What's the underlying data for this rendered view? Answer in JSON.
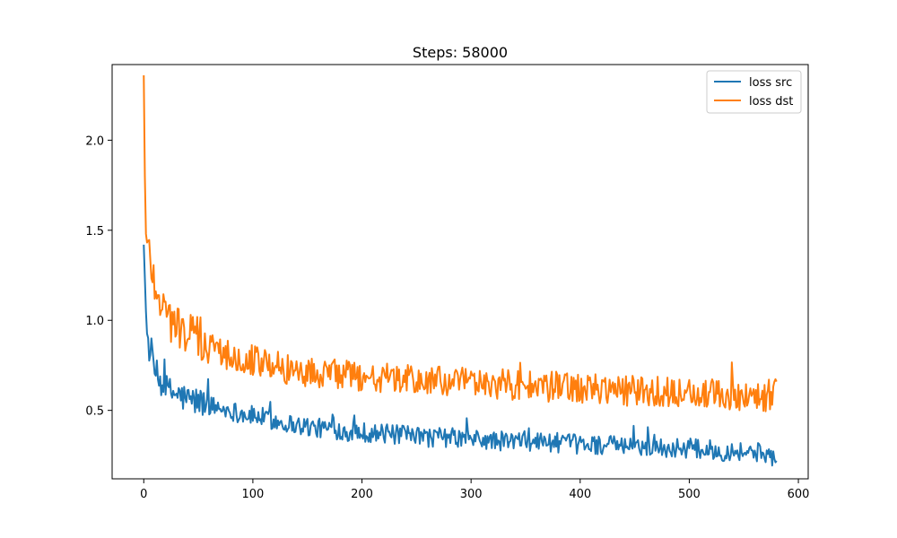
{
  "chart_data": {
    "type": "line",
    "title": "Steps: 58000",
    "xlabel": "",
    "ylabel": "",
    "xlim": [
      -29,
      609
    ],
    "ylim": [
      0.12,
      2.42
    ],
    "xticks": [
      0,
      100,
      200,
      300,
      400,
      500,
      600
    ],
    "yticks": [
      0.5,
      1.0,
      1.5,
      2.0
    ],
    "xtick_labels": [
      "0",
      "100",
      "200",
      "300",
      "400",
      "500",
      "600"
    ],
    "ytick_labels": [
      "0.5",
      "1.0",
      "1.5",
      "2.0"
    ],
    "grid": false,
    "legend_position": "top-right",
    "series": [
      {
        "name": "loss src",
        "color": "#1f77b4",
        "x": [
          0,
          2,
          4,
          6,
          8,
          10,
          15,
          20,
          25,
          30,
          40,
          50,
          60,
          70,
          80,
          90,
          100,
          110,
          120,
          130,
          140,
          150,
          160,
          170,
          180,
          190,
          200,
          220,
          240,
          260,
          280,
          300,
          320,
          340,
          360,
          380,
          400,
          420,
          440,
          460,
          480,
          500,
          520,
          530,
          540,
          550,
          560,
          570,
          575,
          580
        ],
        "values": [
          1.42,
          1.05,
          0.88,
          0.8,
          0.76,
          0.72,
          0.66,
          0.62,
          0.6,
          0.59,
          0.56,
          0.55,
          0.53,
          0.51,
          0.5,
          0.48,
          0.47,
          0.46,
          0.44,
          0.43,
          0.42,
          0.41,
          0.4,
          0.4,
          0.39,
          0.38,
          0.38,
          0.37,
          0.36,
          0.35,
          0.35,
          0.34,
          0.33,
          0.33,
          0.33,
          0.32,
          0.31,
          0.31,
          0.3,
          0.3,
          0.29,
          0.29,
          0.28,
          0.27,
          0.28,
          0.27,
          0.27,
          0.26,
          0.25,
          0.22
        ]
      },
      {
        "name": "loss dst",
        "color": "#ff7f0e",
        "x": [
          0,
          1,
          2,
          3,
          4,
          6,
          8,
          10,
          15,
          20,
          25,
          30,
          40,
          50,
          60,
          70,
          80,
          90,
          100,
          110,
          120,
          130,
          140,
          150,
          160,
          170,
          180,
          190,
          200,
          220,
          240,
          260,
          280,
          300,
          320,
          340,
          360,
          380,
          400,
          420,
          440,
          460,
          480,
          500,
          520,
          530,
          540,
          550,
          560,
          570,
          575,
          580
        ],
        "values": [
          2.36,
          1.8,
          1.48,
          1.42,
          1.4,
          1.35,
          1.28,
          1.22,
          1.12,
          1.05,
          1.0,
          0.97,
          0.93,
          0.9,
          0.86,
          0.83,
          0.81,
          0.8,
          0.78,
          0.76,
          0.75,
          0.73,
          0.72,
          0.71,
          0.71,
          0.7,
          0.7,
          0.69,
          0.69,
          0.68,
          0.67,
          0.66,
          0.66,
          0.65,
          0.65,
          0.64,
          0.63,
          0.63,
          0.62,
          0.62,
          0.61,
          0.61,
          0.6,
          0.6,
          0.59,
          0.59,
          0.58,
          0.58,
          0.58,
          0.57,
          0.57,
          0.66
        ]
      }
    ]
  }
}
